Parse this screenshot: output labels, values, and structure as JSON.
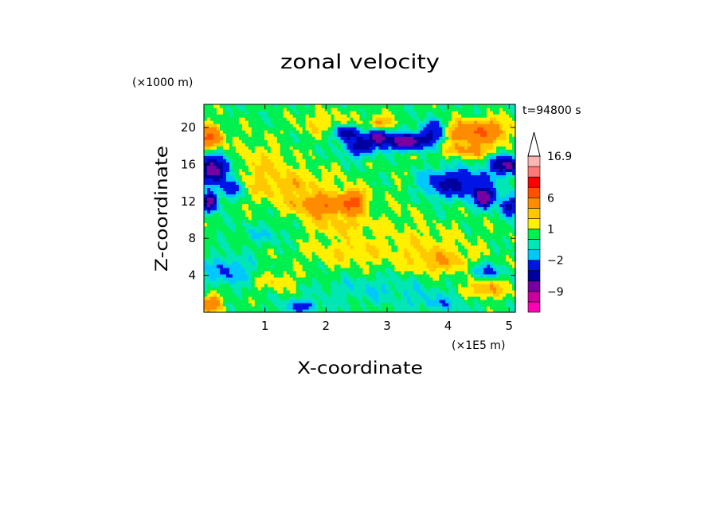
{
  "chart_data": {
    "type": "heatmap",
    "title": "zonal velocity",
    "xlabel": "X-coordinate",
    "ylabel": "Z-coordinate",
    "x_unit": "(×1E5 m)",
    "y_unit": "(×1000 m)",
    "time_label": "t=94800 s",
    "xlim": [
      0,
      5.1
    ],
    "ylim": [
      0,
      22.5
    ],
    "x_ticks": [
      "1",
      "2",
      "3",
      "4",
      "5"
    ],
    "y_ticks": [
      "4",
      "8",
      "12",
      "16",
      "20"
    ],
    "colorbar": {
      "levels": [
        -14,
        -11,
        -9,
        -6,
        -4,
        -2,
        -1,
        0,
        1,
        2,
        3,
        6,
        9,
        12,
        16.9
      ],
      "labels": [
        "16.9",
        "6",
        "1",
        "−2",
        "−9"
      ],
      "label_values": [
        16.9,
        6,
        1,
        -2,
        -9
      ],
      "colors": [
        "#ff00b4",
        "#c800a0",
        "#7800a0",
        "#0000a0",
        "#0014e6",
        "#00c8ff",
        "#00e6b4",
        "#00f050",
        "#fff000",
        "#ffc800",
        "#ff8c00",
        "#ff5000",
        "#ff0000",
        "#ff7878",
        "#ffb4b4"
      ],
      "extend": "max"
    },
    "field_features": [
      {
        "x": 0.15,
        "z": 15.5,
        "sx": 0.25,
        "sz": 1.4,
        "amp": -8
      },
      {
        "x": 0.45,
        "z": 13.5,
        "sx": 0.18,
        "sz": 1.0,
        "amp": -4
      },
      {
        "x": 0.1,
        "z": 12.0,
        "sx": 0.12,
        "sz": 1.0,
        "amp": -8
      },
      {
        "x": 0.1,
        "z": 19.0,
        "sx": 0.2,
        "sz": 1.2,
        "amp": 6
      },
      {
        "x": 0.9,
        "z": 16.0,
        "sx": 0.5,
        "sz": 3.0,
        "amp": 1.5
      },
      {
        "x": 1.95,
        "z": 11.5,
        "sx": 0.4,
        "sz": 1.0,
        "amp": 5
      },
      {
        "x": 2.45,
        "z": 12.0,
        "sx": 0.2,
        "sz": 1.2,
        "amp": 6
      },
      {
        "x": 1.55,
        "z": 13.5,
        "sx": 0.7,
        "sz": 2.0,
        "amp": 2
      },
      {
        "x": 2.2,
        "z": 9.5,
        "sx": 0.6,
        "sz": 1.0,
        "amp": 2
      },
      {
        "x": 2.3,
        "z": 6.5,
        "sx": 0.7,
        "sz": 1.5,
        "amp": 1.5
      },
      {
        "x": 2.55,
        "z": 18.0,
        "sx": 0.25,
        "sz": 1.0,
        "amp": -5
      },
      {
        "x": 2.35,
        "z": 19.5,
        "sx": 0.2,
        "sz": 0.8,
        "amp": -6
      },
      {
        "x": 2.85,
        "z": 19.0,
        "sx": 0.15,
        "sz": 0.8,
        "amp": -8
      },
      {
        "x": 2.9,
        "z": 20.5,
        "sx": 0.2,
        "sz": 0.8,
        "amp": 3
      },
      {
        "x": 3.3,
        "z": 18.5,
        "sx": 0.3,
        "sz": 0.8,
        "amp": -9
      },
      {
        "x": 3.75,
        "z": 19.5,
        "sx": 0.2,
        "sz": 1.2,
        "amp": -5
      },
      {
        "x": 4.1,
        "z": 14.0,
        "sx": 0.55,
        "sz": 1.5,
        "amp": -5
      },
      {
        "x": 4.6,
        "z": 12.5,
        "sx": 0.15,
        "sz": 1.0,
        "amp": -8
      },
      {
        "x": 4.45,
        "z": 19.5,
        "sx": 0.45,
        "sz": 1.2,
        "amp": 6
      },
      {
        "x": 4.35,
        "z": 17.5,
        "sx": 0.4,
        "sz": 0.8,
        "amp": 3
      },
      {
        "x": 4.95,
        "z": 16.0,
        "sx": 0.25,
        "sz": 1.0,
        "amp": -7
      },
      {
        "x": 4.9,
        "z": 20.5,
        "sx": 0.25,
        "sz": 1.0,
        "amp": 1
      },
      {
        "x": 5.0,
        "z": 11.5,
        "sx": 0.15,
        "sz": 1.0,
        "amp": -5
      },
      {
        "x": 3.5,
        "z": 7.5,
        "sx": 0.9,
        "sz": 2.5,
        "amp": 1.2
      },
      {
        "x": 3.9,
        "z": 5.5,
        "sx": 0.5,
        "sz": 1.5,
        "amp": 2
      },
      {
        "x": 2.9,
        "z": 2.5,
        "sx": 1.0,
        "sz": 1.5,
        "amp": -1.2
      },
      {
        "x": 3.9,
        "z": 1.0,
        "sx": 0.5,
        "sz": 1.0,
        "amp": -1.5
      },
      {
        "x": 4.6,
        "z": 2.5,
        "sx": 0.35,
        "sz": 1.0,
        "amp": 3
      },
      {
        "x": 0.4,
        "z": 4.5,
        "sx": 0.4,
        "sz": 1.5,
        "amp": -2.5
      },
      {
        "x": 0.1,
        "z": 1.0,
        "sx": 0.2,
        "sz": 1.0,
        "amp": 4
      },
      {
        "x": 1.2,
        "z": 3.5,
        "sx": 0.4,
        "sz": 1.2,
        "amp": 1.5
      },
      {
        "x": 1.0,
        "z": 8.5,
        "sx": 0.4,
        "sz": 1.0,
        "amp": -1.2
      },
      {
        "x": 3.3,
        "z": 13.0,
        "sx": 0.3,
        "sz": 3.0,
        "amp": 0.8
      },
      {
        "x": 2.0,
        "z": 20.5,
        "sx": 0.5,
        "sz": 1.5,
        "amp": 1.5
      },
      {
        "x": 4.6,
        "z": 4.5,
        "sx": 0.25,
        "sz": 0.8,
        "amp": -3
      },
      {
        "x": 1.6,
        "z": 0.7,
        "sx": 0.3,
        "sz": 0.7,
        "amp": -3
      }
    ]
  }
}
